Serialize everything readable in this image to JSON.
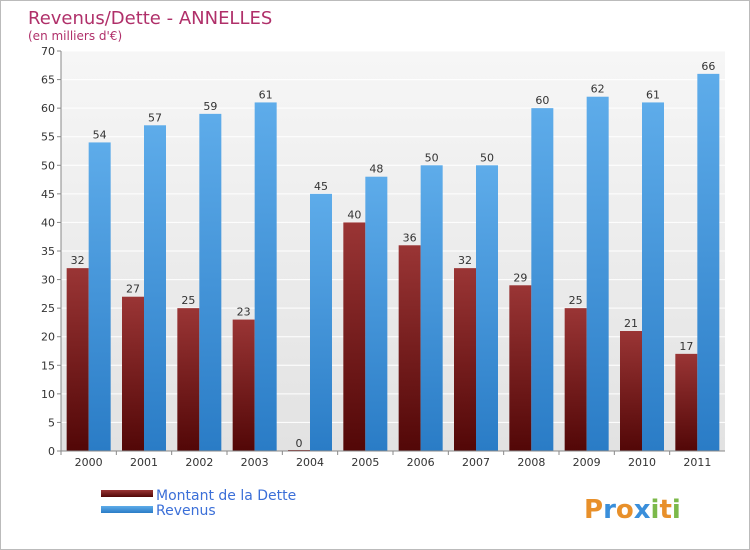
{
  "chart_data": {
    "type": "bar",
    "title": "Revenus/Dette - ANNELLES",
    "subtitle": "(en milliers d'€)",
    "categories": [
      "2000",
      "2001",
      "2002",
      "2003",
      "2004",
      "2005",
      "2006",
      "2007",
      "2008",
      "2009",
      "2010",
      "2011"
    ],
    "series": [
      {
        "name": "Montant de la Dette",
        "color": "#7a1a1a",
        "values": [
          32,
          27,
          25,
          23,
          0,
          40,
          36,
          32,
          29,
          25,
          21,
          17
        ]
      },
      {
        "name": "Revenus",
        "color": "#3a8fdb",
        "values": [
          54,
          57,
          59,
          61,
          45,
          48,
          50,
          50,
          60,
          62,
          61,
          66
        ]
      }
    ],
    "ylim": [
      0,
      70
    ],
    "yticks": [
      0,
      5,
      10,
      15,
      20,
      25,
      30,
      35,
      40,
      45,
      50,
      55,
      60,
      65,
      70
    ],
    "grid": true,
    "legend_position": "bottom-left"
  },
  "logo": {
    "text": "Proxiti"
  }
}
